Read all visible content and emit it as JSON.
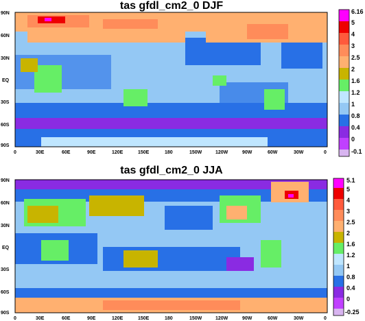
{
  "panels": [
    {
      "title": "tas gfdl_cm2_0 DJF",
      "colorbar_labels": [
        "6.16",
        "5",
        "4",
        "3",
        "2.5",
        "2",
        "1.6",
        "1.2",
        "1",
        "0.8",
        "0.4",
        "0",
        "-0.1"
      ]
    },
    {
      "title": "tas gfdl_cm2_0 JJA",
      "colorbar_labels": [
        "5.1",
        "5",
        "4",
        "3",
        "2.5",
        "2",
        "1.6",
        "1.2",
        "1",
        "0.8",
        "0.4",
        "0",
        "-0.25"
      ]
    }
  ],
  "lat_labels": [
    "90N",
    "60N",
    "30N",
    "EQ",
    "30S",
    "60S",
    "90S"
  ],
  "lon_labels": [
    "0",
    "30E",
    "60E",
    "90E",
    "120E",
    "150E",
    "180",
    "150W",
    "120W",
    "90W",
    "60W",
    "30W",
    "0"
  ],
  "colors": {
    "c5plus": "#ff00ff",
    "c5": "#ee0000",
    "c4": "#ff5a3c",
    "c3": "#ff8c5a",
    "c2_5": "#ffb070",
    "c2": "#c8b400",
    "c1_6": "#66ee66",
    "c1_2": "#bfe6ff",
    "c1": "#94c8f4",
    "c0_8": "#2870e6",
    "c0_4": "#8a2be2",
    "c0": "#c040ff",
    "cneg": "#d8b4f0"
  }
}
